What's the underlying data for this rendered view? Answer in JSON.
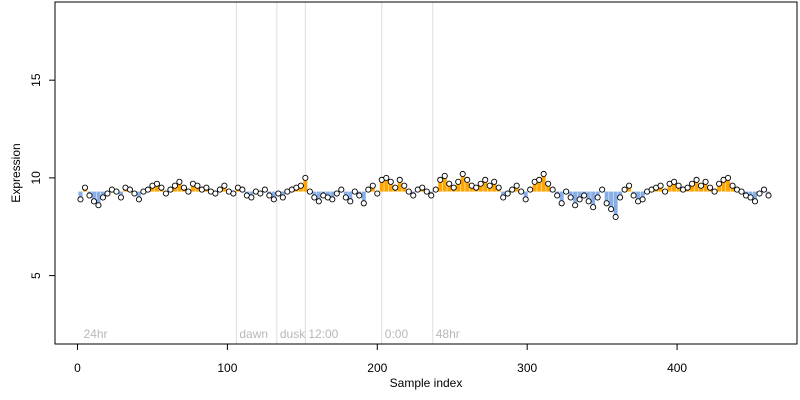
{
  "chart_data": {
    "type": "scatter",
    "xlabel": "Sample index",
    "ylabel": "Expression",
    "xlim": [
      -15,
      480
    ],
    "ylim": [
      1.5,
      19.0
    ],
    "x_ticks": [
      0,
      100,
      200,
      300,
      400
    ],
    "y_ticks": [
      5,
      10,
      15
    ],
    "baseline": 9.3,
    "colors": {
      "above": "#ffa500",
      "below": "#87aee6",
      "point_fill": "#ffffff",
      "point_stroke": "#000000",
      "vline": "#dddddd",
      "annotation": "#b8b8b8"
    },
    "annotations": [
      {
        "x": 2,
        "label": "24hr"
      },
      {
        "x": 106,
        "label": "dawn"
      },
      {
        "x": 133,
        "label": "dusk"
      },
      {
        "x": 152,
        "label": "12:00"
      },
      {
        "x": 203,
        "label": "0:00"
      },
      {
        "x": 237,
        "label": "48hr"
      }
    ],
    "x": [
      2,
      5,
      8,
      11,
      14,
      17,
      20,
      23,
      26,
      29,
      32,
      35,
      38,
      41,
      44,
      47,
      50,
      53,
      56,
      59,
      62,
      65,
      68,
      71,
      74,
      77,
      80,
      83,
      86,
      89,
      92,
      95,
      98,
      101,
      104,
      107,
      110,
      113,
      116,
      119,
      122,
      125,
      128,
      131,
      134,
      137,
      140,
      143,
      146,
      149,
      152,
      155,
      158,
      161,
      164,
      167,
      170,
      173,
      176,
      179,
      182,
      185,
      188,
      191,
      194,
      197,
      200,
      203,
      206,
      209,
      212,
      215,
      218,
      221,
      224,
      227,
      230,
      233,
      236,
      239,
      242,
      245,
      248,
      251,
      254,
      257,
      260,
      263,
      266,
      269,
      272,
      275,
      278,
      281,
      284,
      287,
      290,
      293,
      296,
      299,
      302,
      305,
      308,
      311,
      314,
      317,
      320,
      323,
      326,
      329,
      332,
      335,
      338,
      341,
      344,
      347,
      350,
      353,
      356,
      359,
      362,
      365,
      368,
      371,
      374,
      377,
      380,
      383,
      386,
      389,
      392,
      395,
      398,
      401,
      404,
      407,
      410,
      413,
      416,
      419,
      422,
      425,
      428,
      431,
      434,
      437,
      440,
      443,
      446,
      449,
      452,
      455,
      458,
      461
    ],
    "values": [
      8.9,
      9.5,
      9.1,
      8.8,
      8.6,
      9.0,
      9.2,
      9.4,
      9.3,
      9.0,
      9.5,
      9.4,
      9.2,
      8.9,
      9.3,
      9.4,
      9.6,
      9.7,
      9.5,
      9.2,
      9.4,
      9.6,
      9.8,
      9.5,
      9.3,
      9.7,
      9.6,
      9.4,
      9.5,
      9.3,
      9.2,
      9.4,
      9.6,
      9.3,
      9.2,
      9.5,
      9.4,
      9.1,
      9.0,
      9.3,
      9.2,
      9.4,
      9.1,
      8.9,
      9.2,
      9.0,
      9.3,
      9.4,
      9.5,
      9.6,
      10.0,
      9.3,
      9.0,
      8.8,
      9.1,
      9.0,
      8.9,
      9.2,
      9.4,
      9.0,
      8.8,
      9.3,
      9.1,
      8.7,
      9.4,
      9.6,
      9.2,
      9.9,
      10.0,
      9.8,
      9.5,
      9.9,
      9.6,
      9.3,
      9.1,
      9.4,
      9.5,
      9.3,
      9.1,
      9.4,
      9.9,
      10.1,
      9.7,
      9.5,
      9.8,
      10.2,
      9.9,
      9.6,
      9.5,
      9.7,
      9.9,
      9.6,
      9.8,
      9.5,
      9.0,
      9.2,
      9.4,
      9.6,
      9.3,
      8.9,
      9.4,
      9.8,
      9.9,
      10.2,
      9.7,
      9.4,
      9.1,
      8.7,
      9.3,
      9.0,
      8.6,
      8.9,
      9.1,
      8.8,
      8.5,
      9.0,
      9.4,
      8.7,
      8.4,
      8.0,
      9.0,
      9.4,
      9.6,
      9.1,
      8.8,
      8.9,
      9.3,
      9.4,
      9.5,
      9.6,
      9.3,
      9.7,
      9.8,
      9.6,
      9.4,
      9.5,
      9.7,
      9.9,
      9.6,
      9.8,
      9.5,
      9.3,
      9.7,
      9.9,
      10.0,
      9.6,
      9.4,
      9.3,
      9.1,
      9.0,
      8.8,
      9.2,
      9.4,
      9.1
    ]
  }
}
